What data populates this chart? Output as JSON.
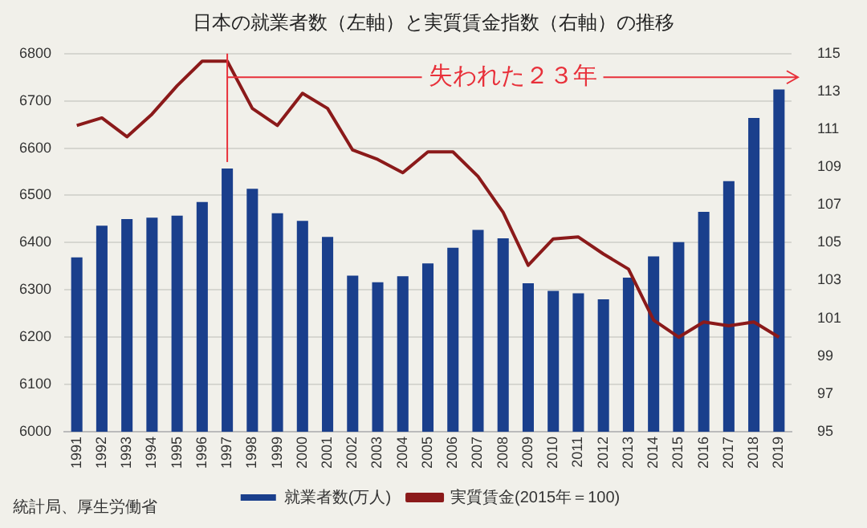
{
  "chart_data": {
    "type": "bar",
    "title": "日本の就業者数（左軸）と実質賃金指数（右軸）の推移",
    "categories": [
      "1991",
      "1992",
      "1993",
      "1994",
      "1995",
      "1996",
      "1997",
      "1998",
      "1999",
      "2000",
      "2001",
      "2002",
      "2003",
      "2004",
      "2005",
      "2006",
      "2007",
      "2008",
      "2009",
      "2010",
      "2011",
      "2012",
      "2013",
      "2014",
      "2015",
      "2016",
      "2017",
      "2018",
      "2019"
    ],
    "series": [
      {
        "name": "就業者数(万人)",
        "color": "#1a3f8c",
        "values": [
          6369,
          6436,
          6450,
          6453,
          6457,
          6486,
          6557,
          6514,
          6462,
          6446,
          6412,
          6330,
          6316,
          6329,
          6356,
          6389,
          6427,
          6409,
          6314,
          6298,
          6293,
          6280,
          6326,
          6371,
          6401,
          6465,
          6530,
          6664,
          6724
        ]
      },
      {
        "name": "実質賃金(2015年＝100)",
        "type": "line",
        "axis": "y2",
        "color": "#8b1a1a",
        "values": [
          111.2,
          111.6,
          110.6,
          111.8,
          113.3,
          114.6,
          114.6,
          112.1,
          111.2,
          112.9,
          112.1,
          109.9,
          109.4,
          108.7,
          109.8,
          109.8,
          108.5,
          106.6,
          103.8,
          105.2,
          105.3,
          104.4,
          103.6,
          100.9,
          100.0,
          100.8,
          100.6,
          100.8,
          100.0
        ]
      }
    ],
    "ylim": [
      6000,
      6800
    ],
    "yticks": [
      6000,
      6100,
      6200,
      6300,
      6400,
      6500,
      6600,
      6700,
      6800
    ],
    "y2lim": [
      95,
      115
    ],
    "y2ticks": [
      95,
      97,
      99,
      101,
      103,
      105,
      107,
      109,
      111,
      113,
      115
    ],
    "grid": "y",
    "legend": "bottom",
    "marker": "none",
    "ref_lines": [
      {
        "axis": "x",
        "value": "1997",
        "color": "#e8303a"
      }
    ],
    "annotations": [
      {
        "text": "失われた２３年",
        "x": "1997",
        "y": 6750
      },
      "統計局、厚生労働省"
    ]
  }
}
